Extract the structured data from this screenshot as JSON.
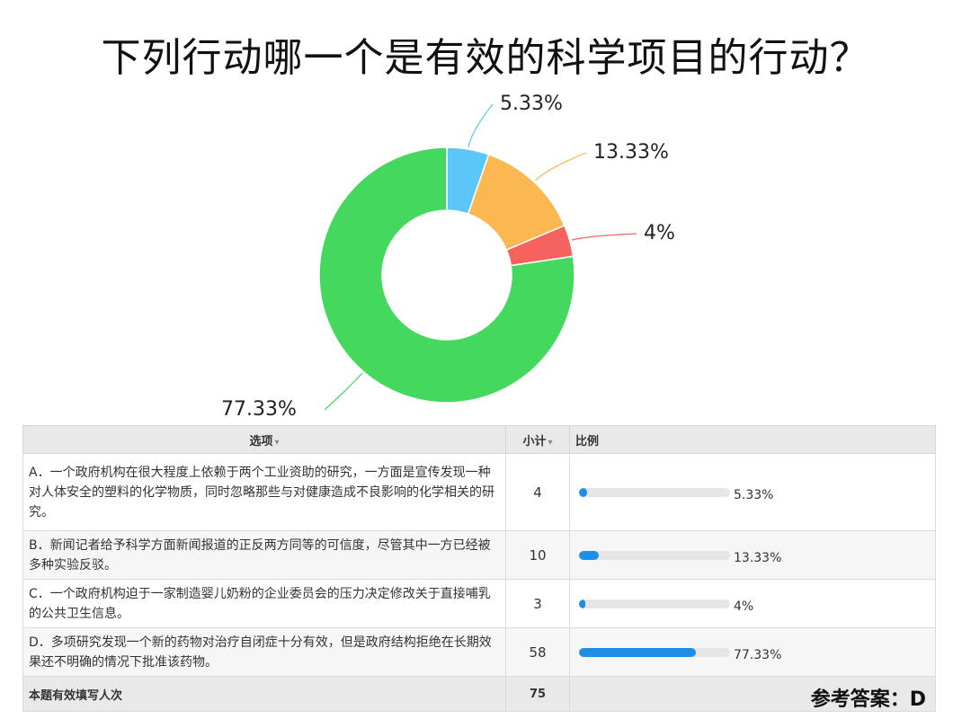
{
  "title": "下列行动哪一个是有效的科学项目的行动？",
  "chart_data": {
    "type": "pie",
    "donut": true,
    "categories": [
      "A",
      "B",
      "C",
      "D"
    ],
    "values": [
      5.33,
      13.33,
      4,
      77.33
    ],
    "labels": [
      "5.33%",
      "13.33%",
      "4%",
      "77.33%"
    ],
    "colors": [
      "#5bc7f8",
      "#fbb750",
      "#f6635f",
      "#45d85f"
    ]
  },
  "table": {
    "headers": {
      "option": "选项",
      "count": "小计",
      "percent": "比例"
    },
    "rows": [
      {
        "option": "A．一个政府机构在很大程度上依赖于两个工业资助的研究，一方面是宣传发现一种对人体安全的塑料的化学物质，同时忽略那些与对健康造成不良影响的化学相关的研究。",
        "count": "4",
        "percent_label": "5.33%",
        "percent": 5.33
      },
      {
        "option": "B．新闻记者给予科学方面新闻报道的正反两方同等的可信度，尽管其中一方已经被多种实验反驳。",
        "count": "10",
        "percent_label": "13.33%",
        "percent": 13.33
      },
      {
        "option": "C．一个政府机构迫于一家制造婴儿奶粉的企业委员会的压力决定修改关于直接哺乳的公共卫生信息。",
        "count": "3",
        "percent_label": "4%",
        "percent": 4
      },
      {
        "option": "D．多项研究发现一个新的药物对治疗自闭症十分有效，但是政府结构拒绝在长期效果还不明确的情况下批准该药物。",
        "count": "58",
        "percent_label": "77.33%",
        "percent": 77.33
      }
    ],
    "total_label": "本题有效填写人次",
    "total_count": "75"
  },
  "answer": "参考答案：D",
  "accent": "#1e8ee6"
}
